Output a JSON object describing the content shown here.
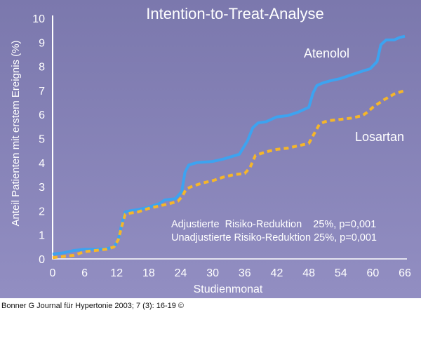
{
  "chart_data": {
    "type": "line",
    "title": "Intention-to-Treat-Analyse",
    "xlabel": "Studienmonat",
    "ylabel": "Anteil Patienten mit erstem Ereignis (%)",
    "xlim": [
      0,
      66
    ],
    "ylim": [
      0,
      10
    ],
    "x_ticks": [
      "0",
      "6",
      "12",
      "18",
      "24",
      "30",
      "36",
      "42",
      "48",
      "54",
      "60",
      "66"
    ],
    "y_ticks": [
      "0",
      "1",
      "2",
      "3",
      "4",
      "5",
      "6",
      "7",
      "8",
      "9",
      "10"
    ],
    "series": [
      {
        "name": "Atenolol",
        "color": "#3da3f0",
        "style": "solid",
        "x": [
          0,
          2,
          4,
          6,
          8,
          10,
          11.5,
          12.3,
          13,
          13.6,
          14.5,
          16,
          18,
          20,
          21,
          23,
          24.2,
          24.8,
          25.5,
          27,
          30,
          32,
          35,
          36.5,
          37.5,
          38.5,
          40,
          42,
          44,
          46,
          48,
          48.8,
          49.5,
          50.5,
          52,
          54,
          56,
          58,
          59.5,
          60.8,
          61.5,
          62.5,
          64,
          65,
          66
        ],
        "y": [
          0.2,
          0.25,
          0.35,
          0.4,
          0.4,
          0.42,
          0.5,
          0.8,
          1.5,
          1.95,
          2.0,
          2.05,
          2.15,
          2.3,
          2.45,
          2.5,
          2.8,
          3.6,
          3.9,
          4.0,
          4.05,
          4.15,
          4.35,
          4.9,
          5.45,
          5.65,
          5.7,
          5.9,
          5.95,
          6.1,
          6.3,
          6.9,
          7.2,
          7.3,
          7.4,
          7.5,
          7.65,
          7.8,
          7.9,
          8.2,
          8.9,
          9.1,
          9.1,
          9.2,
          9.25
        ]
      },
      {
        "name": "Losartan",
        "color": "#f5b62a",
        "style": "dashed",
        "x": [
          0,
          2,
          4,
          6,
          8,
          10,
          11.5,
          12.3,
          13,
          13.6,
          14.5,
          16,
          18,
          20,
          22,
          23.5,
          24.3,
          25,
          26,
          28,
          30,
          32,
          34,
          36,
          37,
          38,
          40,
          42,
          44,
          46,
          48,
          49,
          50,
          51,
          52,
          54,
          56,
          58,
          59,
          60,
          62,
          64,
          66
        ],
        "y": [
          0.05,
          0.1,
          0.15,
          0.3,
          0.35,
          0.4,
          0.5,
          0.8,
          1.4,
          1.85,
          1.9,
          1.95,
          2.1,
          2.2,
          2.3,
          2.4,
          2.6,
          2.9,
          3.0,
          3.15,
          3.25,
          3.4,
          3.5,
          3.55,
          3.8,
          4.3,
          4.45,
          4.55,
          4.6,
          4.7,
          4.8,
          5.2,
          5.6,
          5.7,
          5.75,
          5.8,
          5.85,
          5.95,
          6.1,
          6.3,
          6.6,
          6.85,
          7.0
        ]
      }
    ],
    "series_labels": [
      "Atenolol",
      "Losartan"
    ],
    "annotations": [
      "Adjustierte  Risiko-Reduktion    25%, p=0,001",
      "Unadjustierte Risiko-Reduktion 25%, p=0,001"
    ],
    "grid": false
  },
  "caption": "Bonner G Journal für Hypertonie 2003; 7 (3): 16-19 ©",
  "colors": {
    "background_top": "#7b78ad",
    "background_bottom": "#928ec2",
    "text": "#ffffff",
    "atenolol": "#3da3f0",
    "losartan": "#f5b62a"
  }
}
